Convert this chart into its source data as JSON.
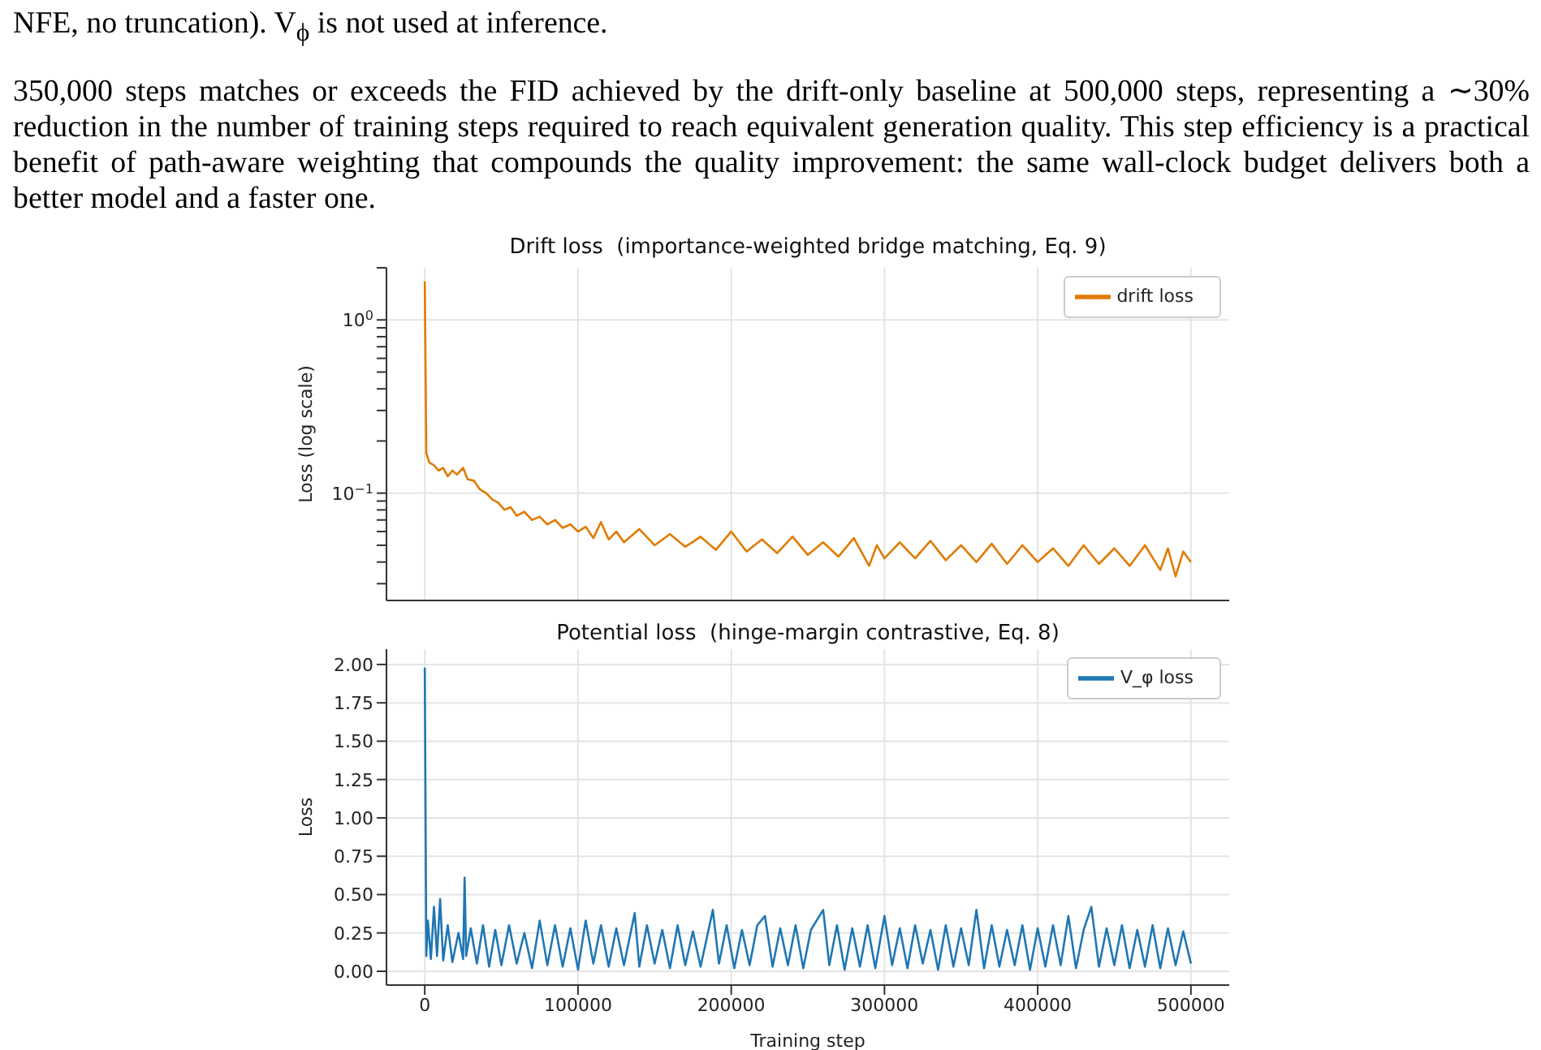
{
  "chart_data": [
    {
      "type": "line",
      "title": "Drift loss  (importance-weighted bridge matching, Eq. 9)",
      "ylabel": "Loss (log scale)",
      "annotations": [
        "NFE, no truncation). V$_{ϕ}$ is not used at inference.",
        "350,000 steps matches or exceeds the FID achieved by the drift-only baseline at 500,000 steps, representing a ∼30% reduction in the number of training steps required to reach equivalent generation quality.  This step efficiency is a practical benefit of path-aware weighting that compounds the quality improvement: the same wall-clock budget delivers both a better model and a faster one."
      ],
      "log": "y",
      "grid": true,
      "legend": "top right",
      "tick_labels": "y",
      "xlim": [
        -25000,
        525000
      ],
      "xticks": [
        0,
        100000,
        200000,
        300000,
        400000,
        500000
      ],
      "ylim": [
        0.024,
        2.0
      ],
      "yticks": [
        {
          "value": 0.03,
          "label": null
        },
        {
          "value": 0.04,
          "label": null
        },
        {
          "value": 0.05,
          "label": null
        },
        {
          "value": 0.06,
          "label": null
        },
        {
          "value": 0.07,
          "label": null
        },
        {
          "value": 0.08,
          "label": null
        },
        {
          "value": 0.09,
          "label": null
        },
        {
          "value": 0.1,
          "label": "10$^{−1}$"
        },
        {
          "value": 0.2,
          "label": null
        },
        {
          "value": 0.3,
          "label": null
        },
        {
          "value": 0.4,
          "label": null
        },
        {
          "value": 0.5,
          "label": null
        },
        {
          "value": 0.6,
          "label": null
        },
        {
          "value": 0.7,
          "label": null
        },
        {
          "value": 0.8,
          "label": null
        },
        {
          "value": 0.9,
          "label": null
        },
        {
          "value": 1,
          "label": "10$^{0}$"
        },
        {
          "value": 2,
          "label": null
        }
      ],
      "series": [
        {
          "name": "drift loss",
          "color": "#e07b00",
          "x": [
            0,
            1000,
            3000,
            6000,
            9000,
            12000,
            15000,
            18000,
            21000,
            25000,
            28000,
            32000,
            36000,
            40000,
            44000,
            48000,
            52000,
            56000,
            60000,
            65000,
            70000,
            75000,
            80000,
            85000,
            90000,
            95000,
            100000,
            105000,
            110000,
            115000,
            120000,
            125000,
            130000,
            140000,
            150000,
            160000,
            170000,
            180000,
            190000,
            200000,
            210000,
            220000,
            230000,
            240000,
            250000,
            260000,
            270000,
            280000,
            290000,
            295000,
            300000,
            310000,
            320000,
            330000,
            340000,
            350000,
            360000,
            370000,
            380000,
            390000,
            400000,
            410000,
            420000,
            430000,
            440000,
            450000,
            460000,
            470000,
            480000,
            485000,
            490000,
            495000,
            500000
          ],
          "values": [
            1.67,
            0.17,
            0.15,
            0.145,
            0.135,
            0.14,
            0.125,
            0.135,
            0.128,
            0.14,
            0.12,
            0.118,
            0.105,
            0.1,
            0.092,
            0.088,
            0.08,
            0.083,
            0.074,
            0.078,
            0.07,
            0.073,
            0.066,
            0.07,
            0.063,
            0.066,
            0.06,
            0.064,
            0.055,
            0.068,
            0.054,
            0.06,
            0.052,
            0.062,
            0.05,
            0.058,
            0.049,
            0.056,
            0.047,
            0.06,
            0.046,
            0.054,
            0.045,
            0.056,
            0.044,
            0.052,
            0.043,
            0.055,
            0.038,
            0.05,
            0.042,
            0.052,
            0.042,
            0.053,
            0.041,
            0.05,
            0.04,
            0.051,
            0.039,
            0.05,
            0.04,
            0.048,
            0.038,
            0.05,
            0.039,
            0.048,
            0.038,
            0.05,
            0.036,
            0.048,
            0.033,
            0.046,
            0.04
          ]
        }
      ]
    },
    {
      "type": "line",
      "title": "Potential loss  (hinge-margin contrastive, Eq. 8)",
      "xlabel": "Training step",
      "ylabel": "Loss",
      "grid": true,
      "legend": "top right",
      "xlim": [
        -25000,
        525000
      ],
      "xticks": [
        0,
        100000,
        200000,
        300000,
        400000,
        500000
      ],
      "ylim": [
        -0.09,
        2.1
      ],
      "yticks": [
        {
          "value": 0,
          "label": "0.00"
        },
        {
          "value": 0.25,
          "label": "0.25"
        },
        {
          "value": 0.5,
          "label": "0.50"
        },
        {
          "value": 0.75,
          "label": "0.75"
        },
        {
          "value": 1,
          "label": "1.00"
        },
        {
          "value": 1.25,
          "label": "1.25"
        },
        {
          "value": 1.5,
          "label": "1.50"
        },
        {
          "value": 1.75,
          "label": "1.75"
        },
        {
          "value": 2,
          "label": "2.00"
        }
      ],
      "series": [
        {
          "name": "V_φ loss",
          "color": "#1f77b4",
          "x": [
            0,
            1000,
            2000,
            4000,
            6000,
            8000,
            10000,
            12000,
            15000,
            18000,
            22000,
            25000,
            26000,
            27000,
            30000,
            34000,
            38000,
            42000,
            46000,
            50000,
            55000,
            60000,
            65000,
            70000,
            75000,
            80000,
            85000,
            90000,
            95000,
            100000,
            105000,
            110000,
            115000,
            120000,
            125000,
            130000,
            137000,
            140000,
            145000,
            150000,
            155000,
            160000,
            165000,
            170000,
            175000,
            180000,
            188000,
            192000,
            197000,
            202000,
            207000,
            212000,
            217000,
            222000,
            227000,
            232000,
            237000,
            242000,
            247000,
            252000,
            260000,
            264000,
            269000,
            274000,
            279000,
            284000,
            289000,
            294000,
            300000,
            305000,
            310000,
            315000,
            320000,
            325000,
            330000,
            335000,
            340000,
            345000,
            350000,
            355000,
            360000,
            365000,
            370000,
            375000,
            380000,
            385000,
            390000,
            395000,
            400000,
            405000,
            410000,
            415000,
            420000,
            425000,
            430000,
            435000,
            440000,
            445000,
            450000,
            455000,
            460000,
            465000,
            470000,
            475000,
            480000,
            485000,
            490000,
            495000,
            500000
          ],
          "values": [
            1.98,
            0.1,
            0.33,
            0.08,
            0.42,
            0.1,
            0.47,
            0.07,
            0.3,
            0.06,
            0.25,
            0.08,
            0.61,
            0.1,
            0.28,
            0.05,
            0.3,
            0.03,
            0.27,
            0.04,
            0.3,
            0.05,
            0.25,
            0.02,
            0.33,
            0.04,
            0.3,
            0.03,
            0.28,
            0.01,
            0.33,
            0.05,
            0.3,
            0.03,
            0.28,
            0.04,
            0.38,
            0.03,
            0.3,
            0.05,
            0.27,
            0.02,
            0.3,
            0.04,
            0.26,
            0.03,
            0.4,
            0.05,
            0.3,
            0.02,
            0.27,
            0.04,
            0.3,
            0.36,
            0.03,
            0.28,
            0.04,
            0.3,
            0.02,
            0.27,
            0.4,
            0.04,
            0.3,
            0.01,
            0.28,
            0.03,
            0.3,
            0.02,
            0.36,
            0.04,
            0.28,
            0.02,
            0.3,
            0.05,
            0.27,
            0.01,
            0.3,
            0.03,
            0.28,
            0.04,
            0.4,
            0.02,
            0.3,
            0.03,
            0.27,
            0.04,
            0.3,
            0.01,
            0.28,
            0.03,
            0.3,
            0.04,
            0.36,
            0.02,
            0.27,
            0.42,
            0.03,
            0.28,
            0.04,
            0.3,
            0.02,
            0.27,
            0.03,
            0.3,
            0.02,
            0.28,
            0.04,
            0.26,
            0.05
          ]
        }
      ]
    }
  ]
}
